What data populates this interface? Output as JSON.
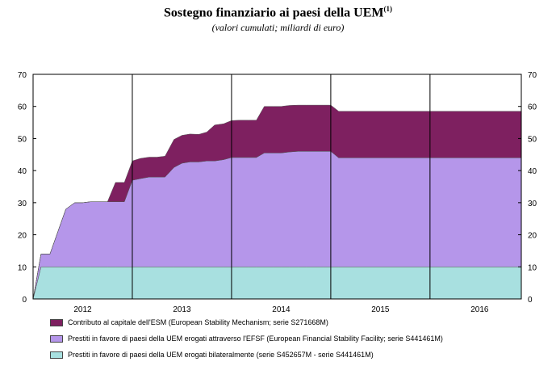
{
  "title": "Sostegno finanziario ai paesi della UEM",
  "title_note": "(1)",
  "subtitle": "(valori cumulati; miliardi di euro)",
  "chart_data": {
    "type": "area",
    "stacked": true,
    "ylim": [
      0,
      70
    ],
    "yticks": [
      0,
      10,
      20,
      30,
      40,
      50,
      60,
      70
    ],
    "xlim": [
      2011.5,
      2016.42
    ],
    "year_labels": [
      "2012",
      "2013",
      "2014",
      "2015",
      "2016"
    ],
    "year_label_positions": [
      2012.0,
      2013.0,
      2014.0,
      2015.0,
      2016.0
    ],
    "year_boundaries": [
      2012.5,
      2013.5,
      2014.5,
      2015.5
    ],
    "series": [
      {
        "name": "Prestiti in favore di paesi della UEM erogati bilateralmente (serie S452657M - serie S441461M)",
        "color": "#a8e0e0",
        "values": [
          [
            2011.5,
            0
          ],
          [
            2011.58,
            10
          ],
          [
            2016.42,
            10
          ]
        ]
      },
      {
        "name": "Prestiti in favore di paesi della UEM erogati attraverso l'EFSF (European Financial Stability Facility; serie S441461M)",
        "color": "#b596ea",
        "values": [
          [
            2011.5,
            0
          ],
          [
            2011.58,
            4
          ],
          [
            2011.67,
            4
          ],
          [
            2011.83,
            18
          ],
          [
            2011.92,
            20
          ],
          [
            2012.0,
            20
          ],
          [
            2012.08,
            20.3
          ],
          [
            2012.17,
            20.3
          ],
          [
            2012.25,
            20.3
          ],
          [
            2012.33,
            20.3
          ],
          [
            2012.42,
            20.3
          ],
          [
            2012.5,
            27
          ],
          [
            2012.58,
            27.5
          ],
          [
            2012.67,
            28
          ],
          [
            2012.75,
            28
          ],
          [
            2012.83,
            28
          ],
          [
            2012.92,
            31
          ],
          [
            2013.0,
            32.3
          ],
          [
            2013.08,
            32.7
          ],
          [
            2013.17,
            32.7
          ],
          [
            2013.25,
            33
          ],
          [
            2013.33,
            33
          ],
          [
            2013.42,
            33.4
          ],
          [
            2013.5,
            34.1
          ],
          [
            2013.58,
            34.1
          ],
          [
            2013.67,
            34.1
          ],
          [
            2013.75,
            34.1
          ],
          [
            2013.83,
            35.5
          ],
          [
            2013.92,
            35.5
          ],
          [
            2014.0,
            35.5
          ],
          [
            2014.08,
            35.8
          ],
          [
            2014.17,
            36
          ],
          [
            2014.25,
            36
          ],
          [
            2014.33,
            36
          ],
          [
            2014.42,
            36
          ],
          [
            2014.5,
            36
          ],
          [
            2014.58,
            34
          ],
          [
            2016.42,
            34
          ]
        ]
      },
      {
        "name": "Contributo al capitale dell'ESM (European Stability Mechanism; serie S271668M)",
        "color": "#7e2060",
        "values": [
          [
            2011.5,
            0
          ],
          [
            2011.58,
            0
          ],
          [
            2012.25,
            0
          ],
          [
            2012.33,
            6
          ],
          [
            2012.42,
            6
          ],
          [
            2012.5,
            6
          ],
          [
            2012.58,
            6.3
          ],
          [
            2012.67,
            6.2
          ],
          [
            2012.75,
            6.2
          ],
          [
            2012.83,
            6.5
          ],
          [
            2012.92,
            8.7
          ],
          [
            2013.0,
            8.7
          ],
          [
            2013.08,
            8.7
          ],
          [
            2013.17,
            8.6
          ],
          [
            2013.25,
            9
          ],
          [
            2013.33,
            11.2
          ],
          [
            2013.42,
            11.2
          ],
          [
            2013.5,
            11.5
          ],
          [
            2013.58,
            11.6
          ],
          [
            2013.67,
            11.6
          ],
          [
            2013.75,
            11.6
          ],
          [
            2013.83,
            14.5
          ],
          [
            2013.92,
            14.5
          ],
          [
            2014.0,
            14.5
          ],
          [
            2014.08,
            14.5
          ],
          [
            2014.17,
            14.4
          ],
          [
            2014.25,
            14.4
          ],
          [
            2014.33,
            14.4
          ],
          [
            2014.42,
            14.4
          ],
          [
            2014.5,
            14.4
          ],
          [
            2014.58,
            14.5
          ],
          [
            2016.42,
            14.5
          ]
        ]
      }
    ],
    "legend": [
      {
        "label": "Contributo al capitale dell'ESM (European Stability Mechanism; serie S271668M)",
        "color": "#7e2060"
      },
      {
        "label": "Prestiti in favore di paesi della UEM erogati attraverso l'EFSF (European Financial Stability Facility; serie S441461M)",
        "color": "#b596ea"
      },
      {
        "label": "Prestiti in favore di paesi della UEM erogati bilateralmente (serie S452657M - serie S441461M)",
        "color": "#a8e0e0"
      }
    ],
    "legend_position": "bottom",
    "grid": false
  }
}
